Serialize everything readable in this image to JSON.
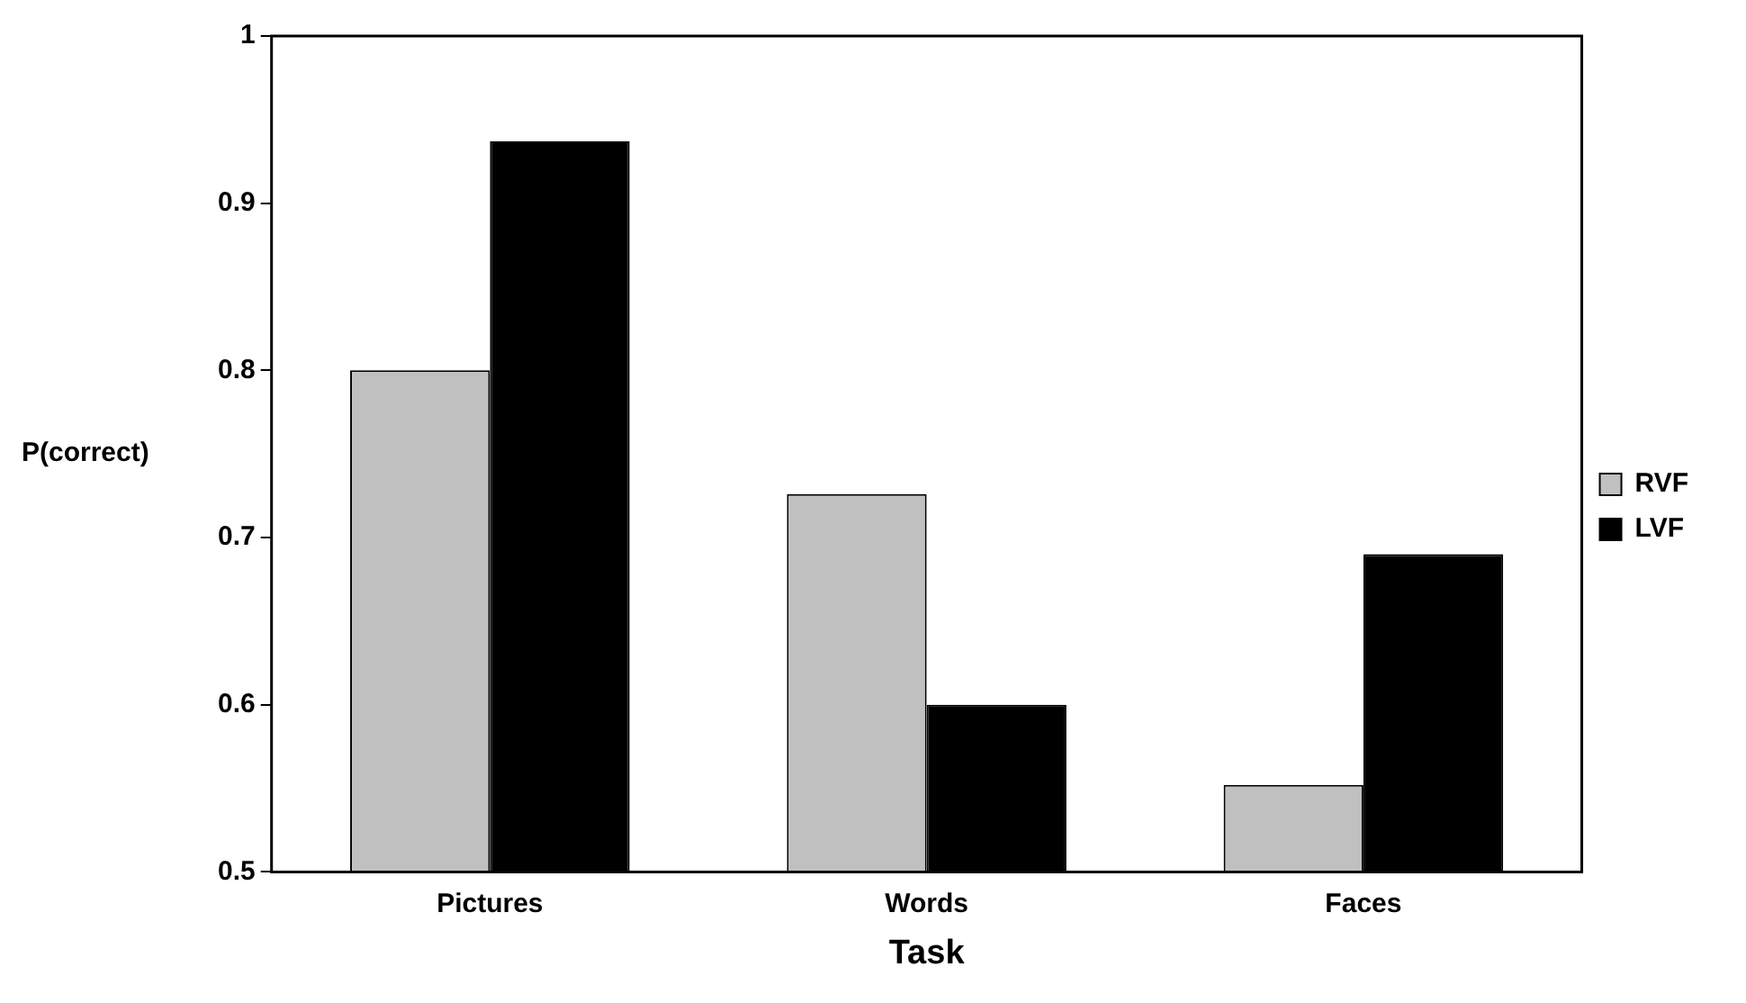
{
  "chart_data": {
    "type": "bar",
    "xlabel": "Task",
    "ylabel": "P(correct)",
    "categories": [
      "Pictures",
      "Words",
      "Faces"
    ],
    "series": [
      {
        "name": "RVF",
        "color": "#c0c0c0",
        "values": [
          0.8,
          0.726,
          0.552
        ]
      },
      {
        "name": "LVF",
        "color": "#000000",
        "values": [
          0.937,
          0.6,
          0.69
        ]
      }
    ],
    "ylim": [
      0.5,
      1
    ],
    "yticks": [
      0.5,
      0.6,
      0.7,
      0.8,
      0.9,
      1
    ],
    "grid": false,
    "legend": "right"
  }
}
